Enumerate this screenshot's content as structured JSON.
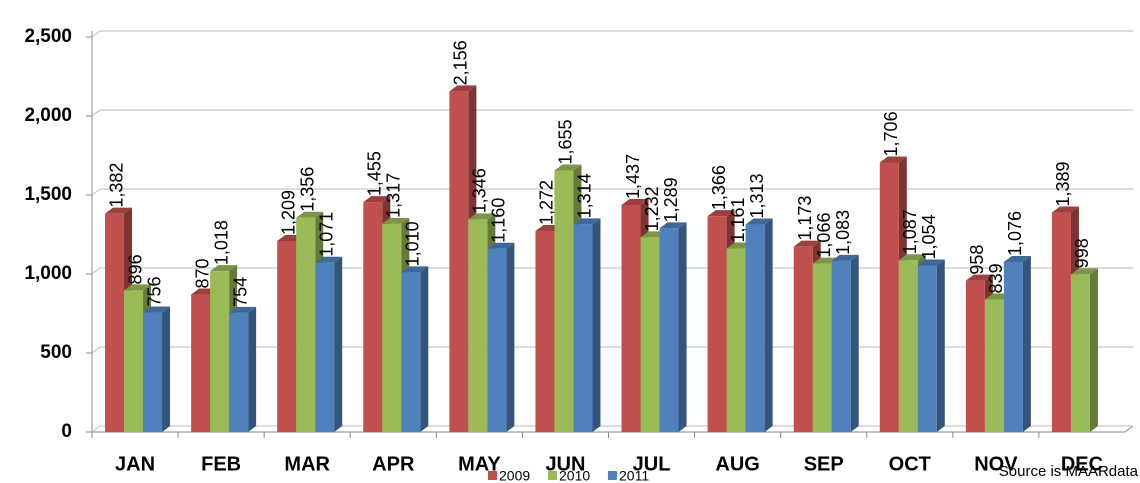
{
  "chart_data": {
    "type": "bar3d",
    "categories": [
      "JAN",
      "FEB",
      "MAR",
      "APR",
      "MAY",
      "JUN",
      "JUL",
      "AUG",
      "SEP",
      "OCT",
      "NOV",
      "DEC"
    ],
    "series": [
      {
        "name": "2009",
        "color": "#c0504d",
        "values": [
          1382,
          870,
          1209,
          1455,
          2156,
          1272,
          1437,
          1366,
          1173,
          1706,
          958,
          1389
        ],
        "value_labels": [
          "1,382",
          "870",
          "1,209",
          "1,455",
          "2,156",
          "1,272",
          "1,437",
          "1,366",
          "1,173",
          "1,706",
          "958",
          "1,389"
        ]
      },
      {
        "name": "2010",
        "color": "#9bbb59",
        "values": [
          896,
          1018,
          1356,
          1317,
          1346,
          1655,
          1232,
          1161,
          1066,
          1087,
          839,
          998
        ],
        "value_labels": [
          "896",
          "1,018",
          "1,356",
          "1,317",
          "1,346",
          "1,655",
          "1,232",
          "1,161",
          "1,066",
          "1,087",
          "839",
          "998"
        ]
      },
      {
        "name": "2011",
        "color": "#4f81bd",
        "values": [
          756,
          754,
          1071,
          1010,
          1160,
          1314,
          1289,
          1313,
          1083,
          1054,
          1076,
          null
        ],
        "value_labels": [
          "756",
          "754",
          "1,071",
          "1,010",
          "1,160",
          "1,314",
          "1,289",
          "1,313",
          "1,083",
          "1,054",
          "1,076",
          null
        ]
      }
    ],
    "ylim": [
      0,
      2500
    ],
    "yticks": [
      0,
      500,
      {
        "value": 1000,
        "label": "1,000"
      },
      {
        "value": 1500,
        "label": "1,500"
      },
      {
        "value": 2000,
        "label": "2,000"
      },
      {
        "value": 2500,
        "label": "2,500"
      }
    ],
    "grid": true,
    "legend": "bottom",
    "annotation": "Source is MAARdata"
  }
}
